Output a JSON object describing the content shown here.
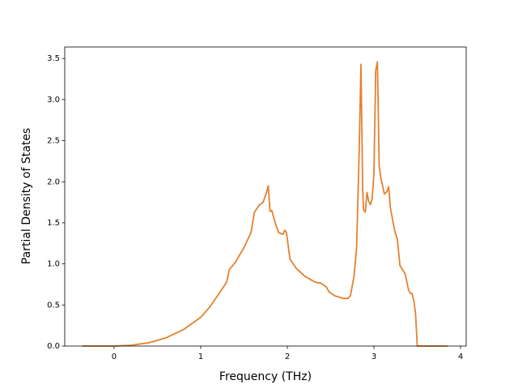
{
  "chart_data": {
    "type": "line",
    "xlabel": "Frequency (THz)",
    "ylabel": "Partial Density of States",
    "x": [
      -0.37,
      0,
      0.2,
      0.4,
      0.6,
      0.8,
      1.0,
      1.1,
      1.2,
      1.3,
      1.33,
      1.4,
      1.5,
      1.58,
      1.62,
      1.68,
      1.72,
      1.76,
      1.78,
      1.8,
      1.82,
      1.86,
      1.9,
      1.95,
      1.97,
      1.99,
      2.03,
      2.1,
      2.2,
      2.3,
      2.35,
      2.38,
      2.45,
      2.48,
      2.55,
      2.65,
      2.7,
      2.73,
      2.77,
      2.8,
      2.83,
      2.85,
      2.87,
      2.88,
      2.9,
      2.92,
      2.94,
      2.96,
      2.98,
      3.0,
      3.02,
      3.04,
      3.06,
      3.08,
      3.12,
      3.15,
      3.17,
      3.19,
      3.24,
      3.27,
      3.3,
      3.33,
      3.36,
      3.4,
      3.42,
      3.44,
      3.46,
      3.48,
      3.5,
      3.85
    ],
    "values": [
      0,
      0,
      0.01,
      0.04,
      0.1,
      0.2,
      0.35,
      0.47,
      0.62,
      0.78,
      0.93,
      1.02,
      1.2,
      1.38,
      1.63,
      1.72,
      1.75,
      1.87,
      1.95,
      1.64,
      1.65,
      1.5,
      1.38,
      1.36,
      1.41,
      1.38,
      1.06,
      0.95,
      0.85,
      0.79,
      0.77,
      0.77,
      0.72,
      0.66,
      0.61,
      0.58,
      0.58,
      0.62,
      0.85,
      1.2,
      2.4,
      3.43,
      1.9,
      1.66,
      1.63,
      1.87,
      1.76,
      1.72,
      1.8,
      2.1,
      3.35,
      3.46,
      2.2,
      2.05,
      1.85,
      1.88,
      1.94,
      1.68,
      1.4,
      1.3,
      0.98,
      0.93,
      0.88,
      0.68,
      0.64,
      0.64,
      0.55,
      0.4,
      0,
      0
    ],
    "color": "#e3812f",
    "xlim": [
      -0.57,
      4.065
    ],
    "xticks": [
      0,
      1,
      2,
      3,
      4
    ],
    "ylim": [
      0,
      3.64
    ],
    "yticks": [
      {
        "value": 0,
        "label": "0.0"
      },
      {
        "value": 0.5,
        "label": "0.5"
      },
      {
        "value": 1,
        "label": "1.0"
      },
      {
        "value": 1.5,
        "label": "1.5"
      },
      {
        "value": 2,
        "label": "2.0"
      },
      {
        "value": 2.5,
        "label": "2.5"
      },
      {
        "value": 3,
        "label": "3.0"
      },
      {
        "value": 3.5,
        "label": "3.5"
      }
    ]
  }
}
